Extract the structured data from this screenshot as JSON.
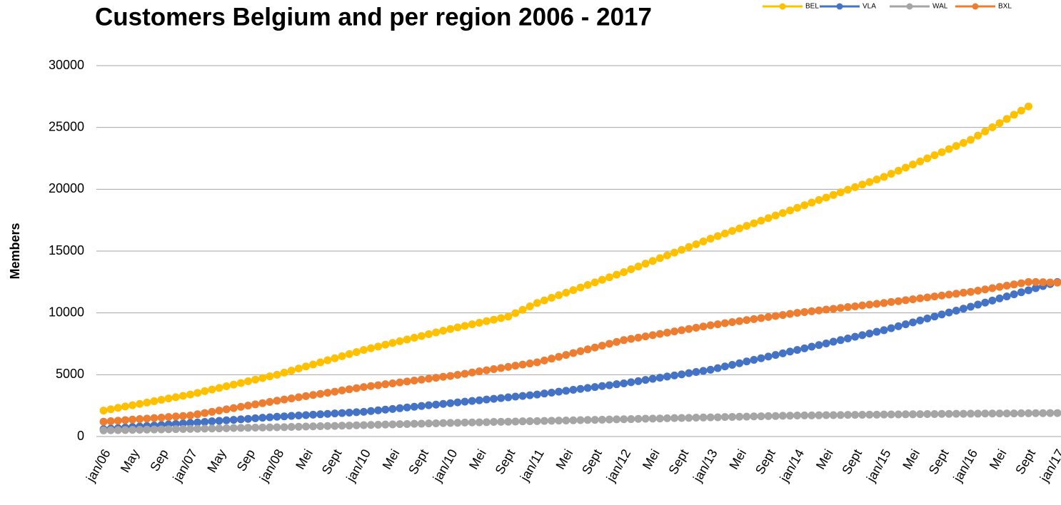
{
  "chart_data": {
    "type": "line",
    "title": "Customers Belgium and per region 2006 - 2017",
    "ylabel": "Members",
    "categories": [
      "jan/06",
      null,
      null,
      null,
      "May",
      null,
      null,
      null,
      "Sep",
      null,
      null,
      null,
      "jan/07",
      null,
      null,
      null,
      "May",
      null,
      null,
      null,
      "Sep",
      null,
      null,
      null,
      "jan/08",
      null,
      null,
      null,
      "Mei",
      null,
      null,
      null,
      "Sept",
      null,
      null,
      null,
      "jan/10",
      null,
      null,
      null,
      "Mei",
      null,
      null,
      null,
      "Sept",
      null,
      null,
      null,
      "jan/10",
      null,
      null,
      null,
      "Mei",
      null,
      null,
      null,
      "Sept",
      null,
      null,
      null,
      "jan/11",
      null,
      null,
      null,
      "Mei",
      null,
      null,
      null,
      "Sept",
      null,
      null,
      null,
      "jan/12",
      null,
      null,
      null,
      "Mei",
      null,
      null,
      null,
      "Sept",
      null,
      null,
      null,
      "jan/13",
      null,
      null,
      null,
      "Mei",
      null,
      null,
      null,
      "Sept",
      null,
      null,
      null,
      "jan/14",
      null,
      null,
      null,
      "Mei",
      null,
      null,
      null,
      "Sept",
      null,
      null,
      null,
      "jan/15",
      null,
      null,
      null,
      "Mei",
      null,
      null,
      null,
      "Sept",
      null,
      null,
      null,
      "jan/16",
      null,
      null,
      null,
      "Mei",
      null,
      null,
      null,
      "Sept",
      null,
      null,
      null,
      "jan/17"
    ],
    "series": [
      {
        "name": "BEL",
        "color": "#ffc000",
        "values": [
          2100,
          2210,
          2320,
          2430,
          2530,
          2640,
          2750,
          2860,
          2970,
          3080,
          3180,
          3290,
          3400,
          3530,
          3670,
          3800,
          3930,
          4070,
          4200,
          4330,
          4470,
          4600,
          4730,
          4870,
          5000,
          5170,
          5330,
          5500,
          5670,
          5830,
          6000,
          6170,
          6330,
          6500,
          6670,
          6830,
          7000,
          7140,
          7280,
          7430,
          7570,
          7710,
          7850,
          7990,
          8130,
          8280,
          8420,
          8560,
          8700,
          8830,
          8950,
          9080,
          9200,
          9330,
          9450,
          9580,
          9700,
          9980,
          10250,
          10530,
          10800,
          11010,
          11220,
          11430,
          11630,
          11840,
          12050,
          12260,
          12470,
          12680,
          12880,
          13090,
          13300,
          13530,
          13750,
          13980,
          14200,
          14430,
          14650,
          14880,
          15100,
          15330,
          15550,
          15780,
          16000,
          16210,
          16420,
          16630,
          16830,
          17040,
          17250,
          17460,
          17670,
          17880,
          18080,
          18290,
          18500,
          18710,
          18920,
          19130,
          19330,
          19540,
          19750,
          19960,
          20170,
          20380,
          20580,
          20790,
          21000,
          21250,
          21500,
          21750,
          22000,
          22250,
          22500,
          22750,
          23000,
          23250,
          23500,
          23750,
          24000,
          24340,
          24680,
          25010,
          25350,
          25690,
          26030,
          26360,
          26700,
          null,
          null,
          null,
          null
        ]
      },
      {
        "name": "VLA",
        "color": "#4472c4",
        "values": [
          600,
          640,
          680,
          730,
          770,
          810,
          850,
          890,
          930,
          980,
          1020,
          1060,
          1100,
          1140,
          1180,
          1230,
          1270,
          1310,
          1350,
          1390,
          1430,
          1480,
          1520,
          1560,
          1600,
          1630,
          1670,
          1700,
          1730,
          1770,
          1800,
          1830,
          1870,
          1900,
          1930,
          1970,
          2000,
          2060,
          2120,
          2180,
          2230,
          2290,
          2350,
          2410,
          2470,
          2530,
          2580,
          2640,
          2700,
          2760,
          2820,
          2880,
          2930,
          2990,
          3050,
          3110,
          3170,
          3230,
          3280,
          3340,
          3400,
          3480,
          3550,
          3630,
          3700,
          3780,
          3850,
          3930,
          4000,
          4080,
          4150,
          4230,
          4300,
          4390,
          4480,
          4580,
          4670,
          4760,
          4850,
          4940,
          5030,
          5130,
          5220,
          5310,
          5400,
          5530,
          5670,
          5800,
          5930,
          6070,
          6200,
          6330,
          6470,
          6600,
          6730,
          6870,
          7000,
          7130,
          7270,
          7400,
          7530,
          7670,
          7800,
          7930,
          8070,
          8200,
          8330,
          8470,
          8600,
          8760,
          8920,
          9080,
          9230,
          9390,
          9550,
          9710,
          9870,
          10030,
          10180,
          10340,
          10500,
          10670,
          10830,
          11000,
          11170,
          11330,
          11500,
          11670,
          11830,
          12000,
          12170,
          12330,
          12500
        ]
      },
      {
        "name": "WAL",
        "color": "#a5a5a5",
        "values": [
          500,
          510,
          520,
          530,
          540,
          550,
          560,
          570,
          580,
          590,
          600,
          610,
          620,
          630,
          640,
          650,
          660,
          670,
          690,
          700,
          710,
          720,
          730,
          740,
          750,
          760,
          780,
          790,
          810,
          820,
          840,
          850,
          860,
          880,
          890,
          910,
          920,
          940,
          950,
          970,
          980,
          1000,
          1010,
          1030,
          1040,
          1060,
          1070,
          1090,
          1100,
          1110,
          1130,
          1140,
          1150,
          1160,
          1180,
          1190,
          1200,
          1210,
          1230,
          1240,
          1250,
          1260,
          1280,
          1290,
          1300,
          1310,
          1330,
          1340,
          1350,
          1360,
          1380,
          1390,
          1400,
          1410,
          1430,
          1440,
          1450,
          1460,
          1480,
          1490,
          1500,
          1510,
          1530,
          1540,
          1550,
          1560,
          1580,
          1590,
          1600,
          1610,
          1630,
          1640,
          1650,
          1660,
          1680,
          1690,
          1700,
          1710,
          1710,
          1720,
          1730,
          1730,
          1740,
          1750,
          1750,
          1760,
          1770,
          1770,
          1780,
          1790,
          1790,
          1800,
          1800,
          1810,
          1820,
          1820,
          1830,
          1830,
          1840,
          1840,
          1850,
          1850,
          1860,
          1860,
          1870,
          1870,
          1870,
          1880,
          1880,
          1890,
          1890,
          1900,
          1900
        ]
      },
      {
        "name": "BXL",
        "color": "#ed7d31",
        "values": [
          1200,
          1240,
          1280,
          1330,
          1370,
          1410,
          1450,
          1490,
          1530,
          1580,
          1620,
          1660,
          1700,
          1800,
          1900,
          2000,
          2100,
          2200,
          2300,
          2400,
          2500,
          2600,
          2700,
          2800,
          2900,
          2990,
          3080,
          3180,
          3270,
          3360,
          3450,
          3540,
          3630,
          3730,
          3820,
          3910,
          4000,
          4080,
          4150,
          4230,
          4300,
          4380,
          4450,
          4530,
          4600,
          4680,
          4750,
          4830,
          4900,
          4990,
          5080,
          5180,
          5270,
          5360,
          5450,
          5540,
          5630,
          5730,
          5820,
          5910,
          6000,
          6150,
          6300,
          6450,
          6600,
          6750,
          6900,
          7050,
          7200,
          7350,
          7500,
          7650,
          7800,
          7900,
          8000,
          8100,
          8200,
          8300,
          8400,
          8500,
          8600,
          8700,
          8800,
          8900,
          9000,
          9080,
          9170,
          9250,
          9330,
          9420,
          9500,
          9580,
          9670,
          9750,
          9830,
          9920,
          10000,
          10070,
          10130,
          10200,
          10270,
          10330,
          10400,
          10470,
          10530,
          10600,
          10670,
          10730,
          10800,
          10880,
          10950,
          11030,
          11100,
          11180,
          11250,
          11330,
          11400,
          11480,
          11550,
          11630,
          11700,
          11800,
          11900,
          12000,
          12100,
          12200,
          12300,
          12400,
          12500,
          12500,
          12480,
          12460,
          12450
        ]
      }
    ],
    "ylim": [
      0,
      30000
    ],
    "yticks": [
      0,
      5000,
      10000,
      15000,
      20000,
      25000,
      30000
    ],
    "grid": true
  }
}
